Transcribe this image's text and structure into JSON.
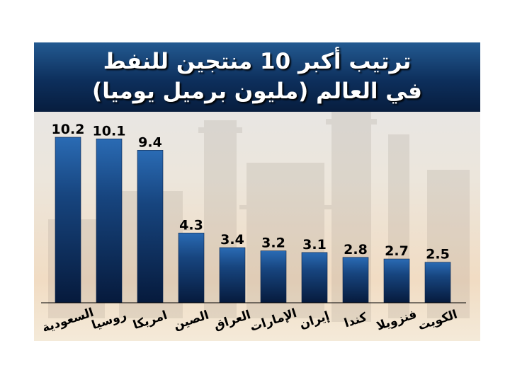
{
  "header": {
    "title_line1": "ترتيب أكبر 10 منتجين للنفط",
    "title_line2": "في العالم (مليون برميل يوميا)"
  },
  "colors": {
    "bar_top": "#2a6bb4",
    "bar_bottom": "#061a3c",
    "header_bg": "#0d2f5c",
    "title_text": "#ffffff"
  },
  "chart_data": {
    "type": "bar",
    "title": "ترتيب أكبر 10 منتجين للنفط في العالم (مليون برميل يوميا)",
    "categories": [
      "السعودية",
      "روسيا",
      "امريكا",
      "الصين",
      "العراق",
      "الإمارات",
      "إيران",
      "كندا",
      "فنزويلا",
      "الكويت"
    ],
    "values": [
      10.2,
      10.1,
      9.4,
      4.3,
      3.4,
      3.2,
      3.1,
      2.8,
      2.7,
      2.5
    ],
    "value_labels": [
      "10.2",
      "10.1",
      "9.4",
      "4.3",
      "3.4",
      "3.2",
      "3.1",
      "2.8",
      "2.7",
      "2.5"
    ],
    "xlabel": "",
    "ylabel": "",
    "ylim": [
      0,
      10.2
    ],
    "grid": false,
    "legend": "none"
  }
}
